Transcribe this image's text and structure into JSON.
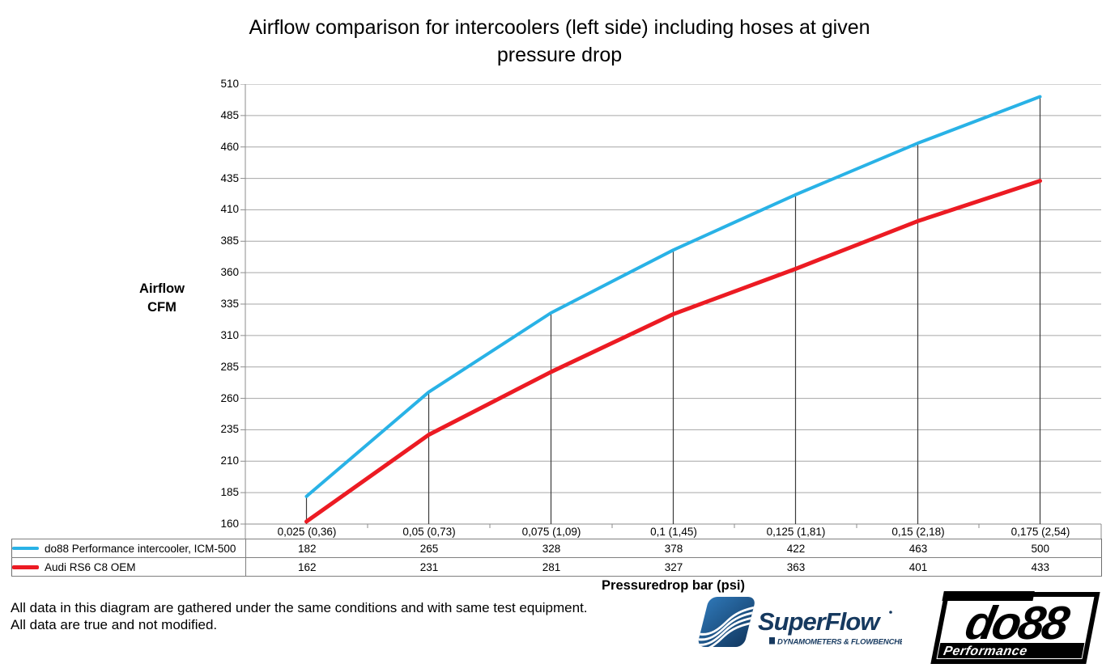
{
  "title": {
    "line1": "Airflow comparison for intercoolers (left side) including hoses at given",
    "line2": "pressure drop"
  },
  "chart_data": {
    "type": "line",
    "title": "Airflow comparison for intercoolers (left side) including hoses at given pressure drop",
    "xlabel": "Pressuredrop bar (psi)",
    "ylabel": "Airflow CFM",
    "ylabel_lines": [
      "Airflow",
      "CFM"
    ],
    "ylim": [
      160,
      510
    ],
    "ytick_step": 25,
    "grid": true,
    "drop_lines": true,
    "legend_position": "table-left",
    "categories": [
      "0,025 (0,36)",
      "0,05 (0,73)",
      "0,075 (1,09)",
      "0,1 (1,45)",
      "0,125 (1,81)",
      "0,15 (2,18)",
      "0,175 (2,54)"
    ],
    "series": [
      {
        "name": "do88 Performance intercooler, ICM-500",
        "color": "#29B2E6",
        "values": [
          182,
          265,
          328,
          378,
          422,
          463,
          500
        ]
      },
      {
        "name": "Audi RS6 C8 OEM",
        "color": "#EC1B23",
        "values": [
          162,
          231,
          281,
          327,
          363,
          401,
          433
        ]
      }
    ],
    "colors": {
      "grid": "#A6A6A6",
      "axis": "#8C8C8C",
      "drop_line": "#3B3B3B",
      "table_border": "#7F7F7F"
    }
  },
  "footer": {
    "line1": "All data in this diagram are gathered under the same conditions and with same test equipment.",
    "line2": "All data are true and not modified."
  },
  "logos": {
    "superflow": {
      "wordmark": "SuperFlow",
      "subtitle": "DYNAMOMETERS & FLOWBENCHES",
      "navy": "#16395F"
    },
    "do88": {
      "wordmark": "do88",
      "subtitle": "Performance"
    }
  }
}
